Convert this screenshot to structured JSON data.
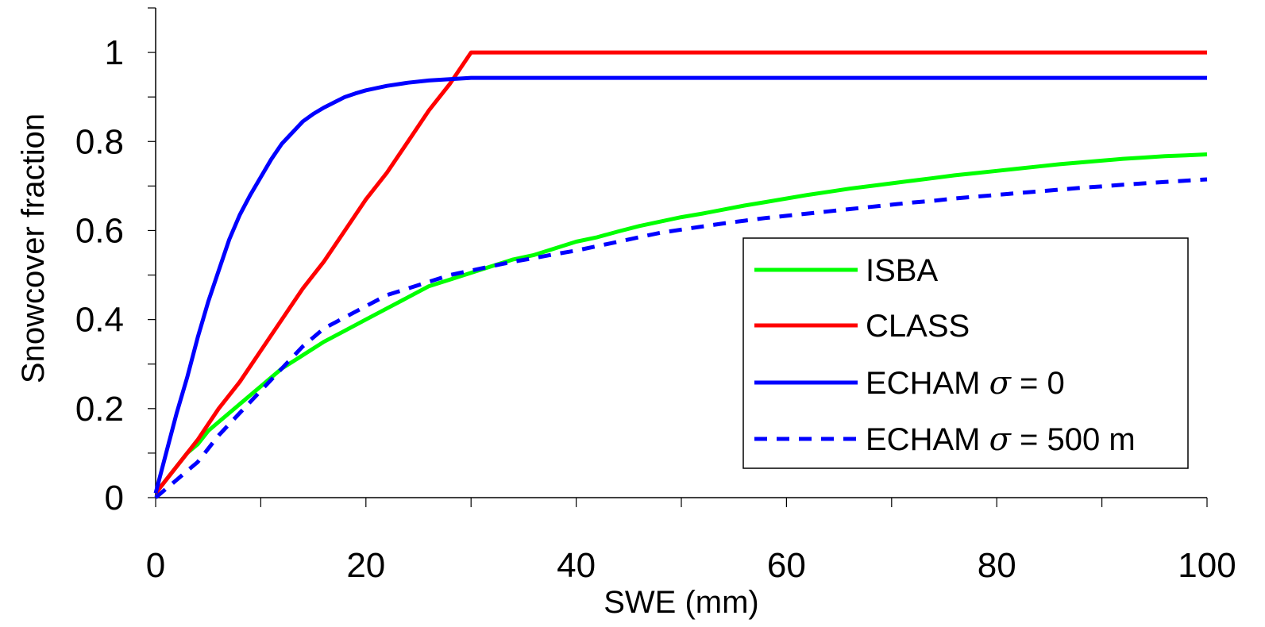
{
  "chart_data": {
    "type": "line",
    "xlabel": "SWE (mm)",
    "ylabel": "Snowcover fraction",
    "xlim": [
      0,
      100
    ],
    "ylim": [
      0,
      1.1
    ],
    "x_ticks": [
      0,
      20,
      40,
      60,
      80,
      100
    ],
    "x_tick_labels": [
      "0",
      "20",
      "40",
      "60",
      "80",
      "100"
    ],
    "y_ticks": [
      0,
      0.2,
      0.4,
      0.6,
      0.8,
      1
    ],
    "y_tick_labels": [
      "0",
      "0.2",
      "0.4",
      "0.6",
      "0.8",
      "1"
    ],
    "grid": false,
    "legend_position": "lower-right",
    "series": [
      {
        "name": "ISBA",
        "color": "#00ff00",
        "style": "solid",
        "x": [
          0,
          1,
          2,
          3,
          4,
          5,
          6,
          8,
          10,
          12,
          14,
          16,
          18,
          20,
          22,
          24,
          26,
          28,
          30,
          32,
          34,
          36,
          38,
          40,
          42,
          44,
          46,
          48,
          50,
          52,
          54,
          56,
          58,
          60,
          62,
          64,
          66,
          68,
          70,
          72,
          74,
          76,
          78,
          80,
          82,
          84,
          86,
          88,
          90,
          92,
          94,
          96,
          98,
          100
        ],
        "y": [
          0.01,
          0.04,
          0.07,
          0.1,
          0.12,
          0.15,
          0.17,
          0.21,
          0.25,
          0.29,
          0.32,
          0.35,
          0.375,
          0.4,
          0.425,
          0.45,
          0.475,
          0.49,
          0.505,
          0.52,
          0.535,
          0.545,
          0.56,
          0.575,
          0.585,
          0.598,
          0.61,
          0.62,
          0.63,
          0.638,
          0.647,
          0.656,
          0.664,
          0.672,
          0.68,
          0.687,
          0.694,
          0.7,
          0.706,
          0.712,
          0.718,
          0.724,
          0.729,
          0.734,
          0.739,
          0.744,
          0.749,
          0.753,
          0.757,
          0.761,
          0.764,
          0.767,
          0.769,
          0.771
        ]
      },
      {
        "name": "CLASS",
        "color": "#ff0000",
        "style": "solid",
        "x": [
          0,
          2,
          4,
          6,
          8,
          10,
          12,
          14,
          16,
          18,
          20,
          22,
          24,
          26,
          28,
          30,
          100
        ],
        "y": [
          0.01,
          0.07,
          0.13,
          0.2,
          0.26,
          0.33,
          0.4,
          0.47,
          0.53,
          0.6,
          0.67,
          0.73,
          0.8,
          0.87,
          0.93,
          1.0,
          1.0
        ]
      },
      {
        "name": "ECHAM σ = 0",
        "color": "#0000ff",
        "style": "solid",
        "x": [
          0,
          1,
          2,
          3,
          4,
          5,
          6,
          7,
          8,
          9,
          10,
          11,
          12,
          13,
          14,
          15,
          16,
          17,
          18,
          19,
          20,
          22,
          24,
          26,
          28,
          30,
          100
        ],
        "y": [
          0.01,
          0.1,
          0.19,
          0.27,
          0.36,
          0.44,
          0.51,
          0.58,
          0.635,
          0.68,
          0.72,
          0.76,
          0.795,
          0.82,
          0.845,
          0.862,
          0.876,
          0.888,
          0.9,
          0.908,
          0.915,
          0.925,
          0.932,
          0.937,
          0.94,
          0.943,
          0.943
        ]
      },
      {
        "name": "ECHAM σ = 500 m",
        "color": "#0000ff",
        "style": "dashed",
        "x": [
          0,
          1,
          2,
          3,
          4,
          5,
          6,
          8,
          10,
          12,
          14,
          16,
          18,
          20,
          22,
          24,
          26,
          28,
          30,
          32,
          34,
          36,
          38,
          40,
          42,
          44,
          46,
          48,
          50,
          52,
          54,
          56,
          58,
          60,
          62,
          64,
          66,
          68,
          70,
          72,
          74,
          76,
          78,
          80,
          82,
          84,
          86,
          88,
          90,
          92,
          94,
          96,
          98,
          100
        ],
        "y": [
          0.0,
          0.02,
          0.04,
          0.06,
          0.08,
          0.11,
          0.14,
          0.19,
          0.24,
          0.29,
          0.34,
          0.38,
          0.405,
          0.43,
          0.455,
          0.47,
          0.485,
          0.5,
          0.51,
          0.52,
          0.53,
          0.538,
          0.547,
          0.555,
          0.565,
          0.575,
          0.585,
          0.595,
          0.602,
          0.609,
          0.616,
          0.622,
          0.628,
          0.633,
          0.638,
          0.643,
          0.648,
          0.653,
          0.658,
          0.663,
          0.667,
          0.672,
          0.676,
          0.68,
          0.684,
          0.688,
          0.692,
          0.696,
          0.699,
          0.703,
          0.706,
          0.709,
          0.712,
          0.715
        ]
      }
    ],
    "legend": [
      {
        "series": 0,
        "label": "ISBA"
      },
      {
        "series": 1,
        "label": "CLASS"
      },
      {
        "series": 2,
        "label_prefix": "ECHAM",
        "sigma": "σ",
        "label_suffix": "= 0"
      },
      {
        "series": 3,
        "label_prefix": "ECHAM",
        "sigma": "σ",
        "label_suffix": "= 500 m"
      }
    ]
  }
}
